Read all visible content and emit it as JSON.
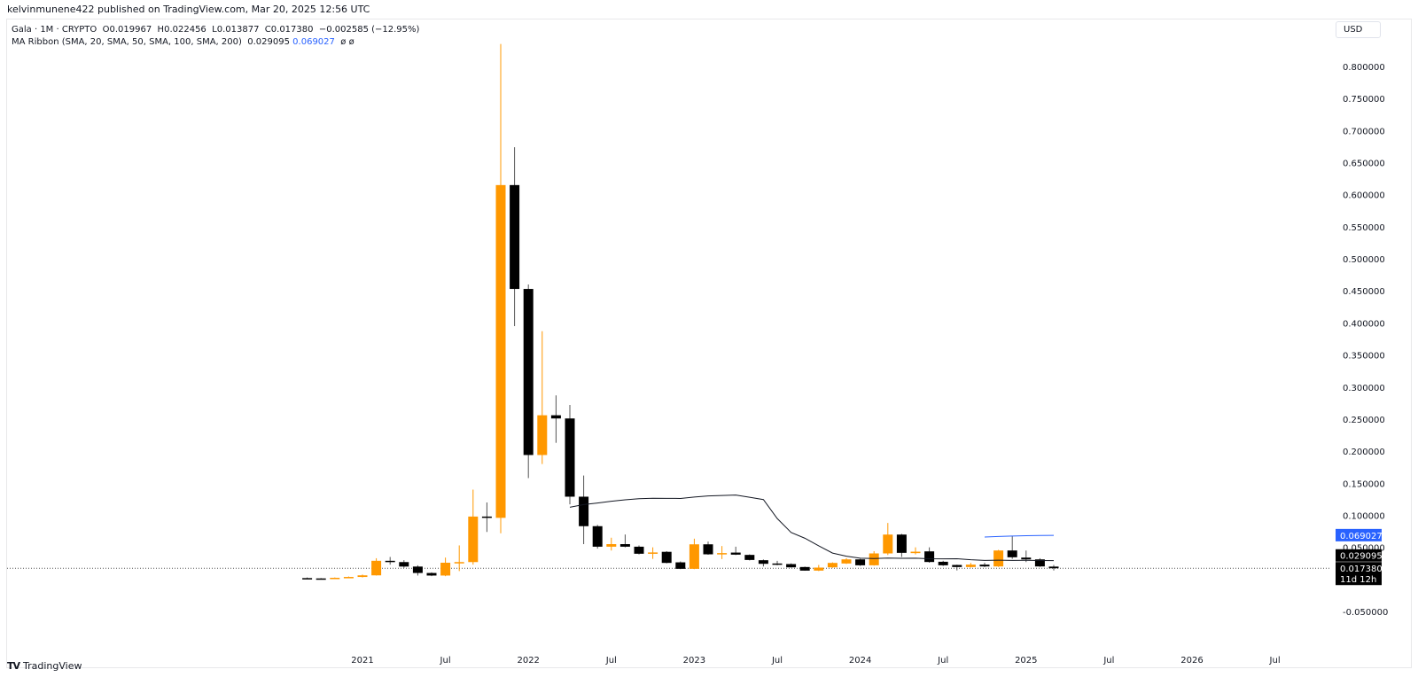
{
  "publisher": "kelvinmunene422 published on TradingView.com, Mar 20, 2025 12:56 UTC",
  "legend": {
    "symbol_line": "Gala · 1M · CRYPTO  O0.019967  H0.022456  L0.013877  C0.017380  −0.002585 (−12.95%)",
    "ma_label": "MA Ribbon (SMA, 20, SMA, 50, SMA, 100, SMA, 200)",
    "ma_value_1": "0.029095",
    "ma_value_2": "0.069027",
    "ma_value_3": "ø",
    "ma_value_4": "ø"
  },
  "currency": "USD",
  "logo_text": "TradingView",
  "colors": {
    "up": "#ff9800",
    "down": "#000000",
    "ma20": "#131722",
    "ma50": "#2962ff",
    "price_tag": "#000000",
    "ma50_tag": "#2962ff"
  },
  "chart_data": {
    "type": "candlestick",
    "interval": "1M",
    "ylim": [
      -0.05,
      0.83
    ],
    "y_ticks": [
      "0.800000",
      "0.750000",
      "0.700000",
      "0.650000",
      "0.600000",
      "0.550000",
      "0.500000",
      "0.450000",
      "0.400000",
      "0.350000",
      "0.300000",
      "0.250000",
      "0.200000",
      "0.150000",
      "0.100000",
      "0.050000",
      "-0.050000"
    ],
    "y_tick_values": [
      0.8,
      0.75,
      0.7,
      0.65,
      0.6,
      0.55,
      0.5,
      0.45,
      0.4,
      0.35,
      0.3,
      0.25,
      0.2,
      0.15,
      0.1,
      0.05,
      -0.05
    ],
    "x_ticks": [
      {
        "label": "2021",
        "date": "2021-01"
      },
      {
        "label": "Jul",
        "date": "2021-07"
      },
      {
        "label": "2022",
        "date": "2022-01"
      },
      {
        "label": "Jul",
        "date": "2022-07"
      },
      {
        "label": "2023",
        "date": "2023-01"
      },
      {
        "label": "Jul",
        "date": "2023-07"
      },
      {
        "label": "2024",
        "date": "2024-01"
      },
      {
        "label": "Jul",
        "date": "2024-07"
      },
      {
        "label": "2025",
        "date": "2025-01"
      },
      {
        "label": "Jul",
        "date": "2025-07"
      },
      {
        "label": "2026",
        "date": "2026-01"
      },
      {
        "label": "Jul",
        "date": "2026-07"
      }
    ],
    "candles": [
      {
        "date": "2020-09",
        "o": 0.002,
        "h": 0.003,
        "l": 0.0012,
        "c": 0.0015
      },
      {
        "date": "2020-10",
        "o": 0.0015,
        "h": 0.002,
        "l": 0.001,
        "c": 0.0012
      },
      {
        "date": "2020-11",
        "o": 0.0012,
        "h": 0.003,
        "l": 0.001,
        "c": 0.0025
      },
      {
        "date": "2020-12",
        "o": 0.0025,
        "h": 0.0045,
        "l": 0.002,
        "c": 0.0038
      },
      {
        "date": "2021-01",
        "o": 0.0038,
        "h": 0.0075,
        "l": 0.003,
        "c": 0.0063
      },
      {
        "date": "2021-02",
        "o": 0.0063,
        "h": 0.033,
        "l": 0.006,
        "c": 0.029
      },
      {
        "date": "2021-03",
        "o": 0.029,
        "h": 0.035,
        "l": 0.023,
        "c": 0.027
      },
      {
        "date": "2021-04",
        "o": 0.027,
        "h": 0.03,
        "l": 0.018,
        "c": 0.02
      },
      {
        "date": "2021-05",
        "o": 0.02,
        "h": 0.022,
        "l": 0.006,
        "c": 0.01
      },
      {
        "date": "2021-06",
        "o": 0.01,
        "h": 0.011,
        "l": 0.005,
        "c": 0.006
      },
      {
        "date": "2021-07",
        "o": 0.006,
        "h": 0.034,
        "l": 0.005,
        "c": 0.026
      },
      {
        "date": "2021-08",
        "o": 0.026,
        "h": 0.053,
        "l": 0.013,
        "c": 0.027
      },
      {
        "date": "2021-09",
        "o": 0.027,
        "h": 0.14,
        "l": 0.023,
        "c": 0.098
      },
      {
        "date": "2021-10",
        "o": 0.098,
        "h": 0.12,
        "l": 0.074,
        "c": 0.096
      },
      {
        "date": "2021-11",
        "o": 0.096,
        "h": 0.835,
        "l": 0.072,
        "c": 0.615
      },
      {
        "date": "2021-12",
        "o": 0.615,
        "h": 0.674,
        "l": 0.395,
        "c": 0.453
      },
      {
        "date": "2022-01",
        "o": 0.453,
        "h": 0.46,
        "l": 0.158,
        "c": 0.194
      },
      {
        "date": "2022-02",
        "o": 0.194,
        "h": 0.387,
        "l": 0.18,
        "c": 0.256
      },
      {
        "date": "2022-03",
        "o": 0.256,
        "h": 0.287,
        "l": 0.213,
        "c": 0.251
      },
      {
        "date": "2022-04",
        "o": 0.251,
        "h": 0.272,
        "l": 0.117,
        "c": 0.129
      },
      {
        "date": "2022-05",
        "o": 0.129,
        "h": 0.162,
        "l": 0.055,
        "c": 0.083
      },
      {
        "date": "2022-06",
        "o": 0.083,
        "h": 0.085,
        "l": 0.048,
        "c": 0.051
      },
      {
        "date": "2022-07",
        "o": 0.051,
        "h": 0.065,
        "l": 0.045,
        "c": 0.055
      },
      {
        "date": "2022-08",
        "o": 0.055,
        "h": 0.07,
        "l": 0.05,
        "c": 0.051
      },
      {
        "date": "2022-09",
        "o": 0.051,
        "h": 0.053,
        "l": 0.039,
        "c": 0.04
      },
      {
        "date": "2022-10",
        "o": 0.04,
        "h": 0.05,
        "l": 0.032,
        "c": 0.042
      },
      {
        "date": "2022-11",
        "o": 0.043,
        "h": 0.044,
        "l": 0.025,
        "c": 0.0257
      },
      {
        "date": "2022-12",
        "o": 0.0266,
        "h": 0.028,
        "l": 0.016,
        "c": 0.0165
      },
      {
        "date": "2023-01",
        "o": 0.0165,
        "h": 0.0635,
        "l": 0.016,
        "c": 0.0547
      },
      {
        "date": "2023-02",
        "o": 0.0547,
        "h": 0.059,
        "l": 0.0385,
        "c": 0.0391
      },
      {
        "date": "2023-03",
        "o": 0.0395,
        "h": 0.052,
        "l": 0.0317,
        "c": 0.041
      },
      {
        "date": "2023-04",
        "o": 0.0418,
        "h": 0.051,
        "l": 0.038,
        "c": 0.0386
      },
      {
        "date": "2023-05",
        "o": 0.0382,
        "h": 0.039,
        "l": 0.0295,
        "c": 0.0303
      },
      {
        "date": "2023-06",
        "o": 0.0299,
        "h": 0.031,
        "l": 0.0202,
        "c": 0.0243
      },
      {
        "date": "2023-07",
        "o": 0.0248,
        "h": 0.029,
        "l": 0.022,
        "c": 0.023
      },
      {
        "date": "2023-08",
        "o": 0.0239,
        "h": 0.025,
        "l": 0.0185,
        "c": 0.0188
      },
      {
        "date": "2023-09",
        "o": 0.0193,
        "h": 0.02,
        "l": 0.0135,
        "c": 0.0137
      },
      {
        "date": "2023-10",
        "o": 0.0137,
        "h": 0.0225,
        "l": 0.013,
        "c": 0.0184
      },
      {
        "date": "2023-11",
        "o": 0.0188,
        "h": 0.0265,
        "l": 0.018,
        "c": 0.0257
      },
      {
        "date": "2023-12",
        "o": 0.0248,
        "h": 0.033,
        "l": 0.024,
        "c": 0.0312
      },
      {
        "date": "2024-01",
        "o": 0.0312,
        "h": 0.032,
        "l": 0.021,
        "c": 0.022
      },
      {
        "date": "2024-02",
        "o": 0.022,
        "h": 0.044,
        "l": 0.0215,
        "c": 0.0405
      },
      {
        "date": "2024-03",
        "o": 0.0405,
        "h": 0.088,
        "l": 0.038,
        "c": 0.0699
      },
      {
        "date": "2024-04",
        "o": 0.0699,
        "h": 0.071,
        "l": 0.035,
        "c": 0.0414
      },
      {
        "date": "2024-05",
        "o": 0.041,
        "h": 0.05,
        "l": 0.039,
        "c": 0.0432
      },
      {
        "date": "2024-06",
        "o": 0.0437,
        "h": 0.05,
        "l": 0.026,
        "c": 0.0271
      },
      {
        "date": "2024-07",
        "o": 0.0275,
        "h": 0.029,
        "l": 0.021,
        "c": 0.022
      },
      {
        "date": "2024-08",
        "o": 0.0225,
        "h": 0.023,
        "l": 0.014,
        "c": 0.0193
      },
      {
        "date": "2024-09",
        "o": 0.0193,
        "h": 0.0257,
        "l": 0.0185,
        "c": 0.023
      },
      {
        "date": "2024-10",
        "o": 0.023,
        "h": 0.026,
        "l": 0.019,
        "c": 0.0202
      },
      {
        "date": "2024-11",
        "o": 0.0202,
        "h": 0.046,
        "l": 0.0195,
        "c": 0.0451
      },
      {
        "date": "2024-12",
        "o": 0.0451,
        "h": 0.068,
        "l": 0.032,
        "c": 0.0345
      },
      {
        "date": "2025-01",
        "o": 0.034,
        "h": 0.045,
        "l": 0.027,
        "c": 0.0312
      },
      {
        "date": "2025-02",
        "o": 0.0312,
        "h": 0.033,
        "l": 0.0195,
        "c": 0.0202
      },
      {
        "date": "2025-03",
        "o": 0.019967,
        "h": 0.022456,
        "l": 0.013877,
        "c": 0.01738
      }
    ],
    "moving_averages": [
      {
        "name": "SMA 20",
        "period": 20,
        "color": "#131722"
      },
      {
        "name": "SMA 50",
        "period": 50,
        "color": "#2962ff"
      }
    ],
    "price_tags": [
      {
        "label": "0.069027",
        "kind": "ma50",
        "value": 0.069027
      },
      {
        "label": "0.029095",
        "kind": "ma20",
        "value": 0.029095
      },
      {
        "label": "0.017380",
        "kind": "last",
        "value": 0.01738,
        "countdown": "11d 12h"
      }
    ],
    "grid": false
  }
}
